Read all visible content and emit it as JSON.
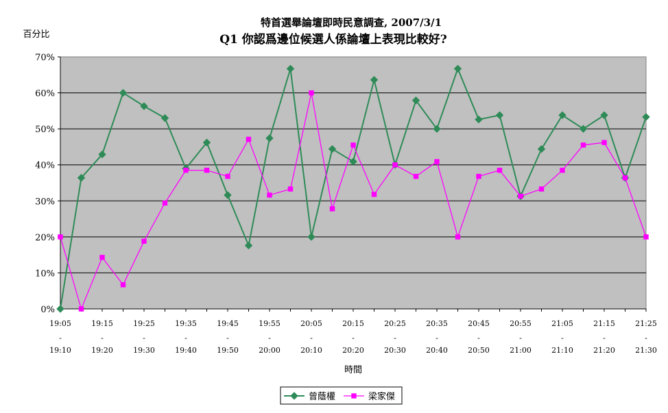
{
  "chart_data": {
    "type": "line",
    "title": "特首選舉論壇即時民意調查, 2007/3/1",
    "subtitle": "Q1 你認爲邊位候選人係論壇上表現比較好?",
    "ylabel": "百分比",
    "xlabel": "時間",
    "ylim": [
      0,
      70
    ],
    "yticks": [
      "0%",
      "10%",
      "20%",
      "30%",
      "40%",
      "50%",
      "60%",
      "70%"
    ],
    "grid": "horizontal",
    "legend_position": "bottom",
    "plot_background": "#c0c0c0",
    "categories": [
      "19:05-19:10",
      "19:10-19:15",
      "19:15-19:20",
      "19:20-19:25",
      "19:25-19:30",
      "19:30-19:35",
      "19:35-19:40",
      "19:40-19:45",
      "19:45-19:50",
      "19:50-19:55",
      "19:55-20:00",
      "20:00-20:05",
      "20:05-20:10",
      "20:10-20:15",
      "20:15-20:20",
      "20:20-20:25",
      "20:25-20:30",
      "20:30-20:35",
      "20:35-20:40",
      "20:40-20:45",
      "20:45-20:50",
      "20:50-20:55",
      "20:55-21:00",
      "21:00-21:05",
      "21:05-21:10",
      "21:10-21:15",
      "21:15-21:20",
      "21:20-21:25",
      "21:25-21:30"
    ],
    "xtick_labels": [
      {
        "top": "19:05",
        "mid": "-",
        "bottom": "19:10"
      },
      {
        "top": "19:15",
        "mid": "-",
        "bottom": "19:20"
      },
      {
        "top": "19:25",
        "mid": "-",
        "bottom": "19:30"
      },
      {
        "top": "19:35",
        "mid": "-",
        "bottom": "19:40"
      },
      {
        "top": "19:45",
        "mid": "-",
        "bottom": "19:50"
      },
      {
        "top": "19:55",
        "mid": "-",
        "bottom": "20:00"
      },
      {
        "top": "20:05",
        "mid": "-",
        "bottom": "20:10"
      },
      {
        "top": "20:15",
        "mid": "-",
        "bottom": "20:20"
      },
      {
        "top": "20:25",
        "mid": "-",
        "bottom": "20:30"
      },
      {
        "top": "20:35",
        "mid": "-",
        "bottom": "20:40"
      },
      {
        "top": "20:45",
        "mid": "-",
        "bottom": "20:50"
      },
      {
        "top": "20:55",
        "mid": "-",
        "bottom": "21:00"
      },
      {
        "top": "21:05",
        "mid": "-",
        "bottom": "21:10"
      },
      {
        "top": "21:15",
        "mid": "-",
        "bottom": "21:20"
      },
      {
        "top": "21:25",
        "mid": "-",
        "bottom": "21:30"
      }
    ],
    "xtick_every": 2,
    "series": [
      {
        "name": "曾蔭權",
        "color": "#2e8b57",
        "marker": "diamond",
        "values": [
          0,
          36.4,
          42.9,
          60,
          56.3,
          53,
          39,
          46.2,
          31.6,
          17.6,
          47.4,
          66.7,
          20,
          44.4,
          40.9,
          63.6,
          40,
          57.9,
          50,
          66.7,
          52.6,
          53.8,
          31.3,
          44.4,
          53.8,
          50,
          53.8,
          36.4,
          53.3
        ]
      },
      {
        "name": "梁家傑",
        "color": "#ff00ff",
        "marker": "square",
        "values": [
          20,
          0,
          14.3,
          6.7,
          18.8,
          29.4,
          38.5,
          38.5,
          36.8,
          47.1,
          31.6,
          33.3,
          60,
          27.8,
          45.5,
          31.8,
          40,
          36.8,
          40.9,
          20,
          36.8,
          38.5,
          31.3,
          33.3,
          38.5,
          45.5,
          46.2,
          36.4,
          20
        ]
      }
    ]
  }
}
